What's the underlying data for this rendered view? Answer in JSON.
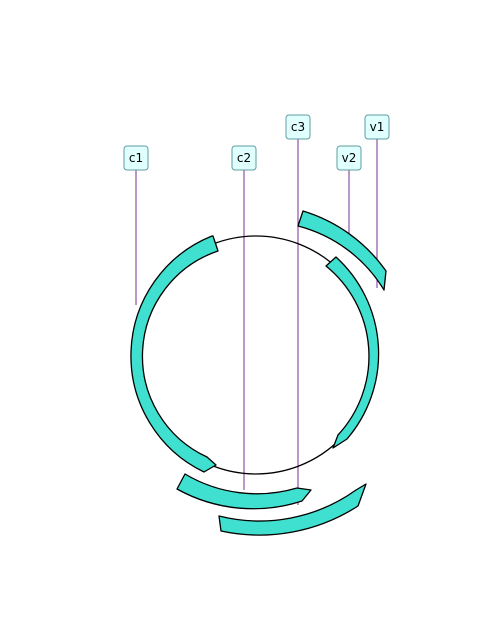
{
  "colors": {
    "feature_fill": "#40e0d0",
    "feature_stroke": "#000000",
    "backbone": "#000000",
    "label_fill": "#e0ffff",
    "label_stroke": "#5f9ea0",
    "leader_line": "#7b2f8f"
  },
  "features": [
    {
      "label": "c1",
      "direction": "reverse"
    },
    {
      "label": "c2",
      "direction": "forward"
    },
    {
      "label": "c3",
      "direction": "reverse"
    },
    {
      "label": "v2",
      "direction": "reverse"
    },
    {
      "label": "v1",
      "direction": "forward"
    }
  ]
}
